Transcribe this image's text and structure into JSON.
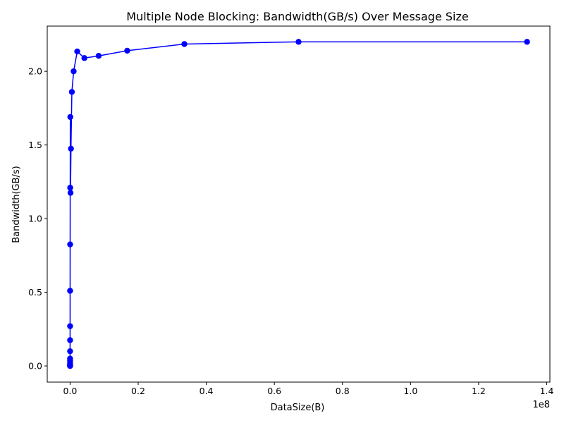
{
  "chart_data": {
    "type": "line",
    "title": "Multiple Node Blocking: Bandwidth(GB/s) Over Message Size",
    "xlabel": "DataSize(B)",
    "ylabel": "Bandwidth(GB/s)",
    "x_multiplier_label": "1e8",
    "xlim": [
      -6710886.4,
      140928614.4
    ],
    "ylim": [
      -0.1098,
      2.307
    ],
    "x_ticks": [
      {
        "value": 0,
        "label": "0.0"
      },
      {
        "value": 20000000,
        "label": "0.2"
      },
      {
        "value": 40000000,
        "label": "0.4"
      },
      {
        "value": 60000000,
        "label": "0.6"
      },
      {
        "value": 80000000,
        "label": "0.8"
      },
      {
        "value": 100000000,
        "label": "1.0"
      },
      {
        "value": 120000000,
        "label": "1.2"
      },
      {
        "value": 140000000,
        "label": "1.4"
      }
    ],
    "y_ticks": [
      {
        "value": 0.0,
        "label": "0.0"
      },
      {
        "value": 0.5,
        "label": "0.5"
      },
      {
        "value": 1.0,
        "label": "1.0"
      },
      {
        "value": 1.5,
        "label": "1.5"
      },
      {
        "value": 2.0,
        "label": "2.0"
      }
    ],
    "grid": false,
    "legend": "none",
    "color": "#0000ff",
    "series": [
      {
        "x": [
          1,
          2,
          4,
          8,
          16,
          32,
          64,
          128,
          256,
          512,
          1024,
          2048,
          4096,
          8192,
          16384,
          32768,
          65536,
          131072,
          262144,
          524288,
          1048576,
          2097152,
          4194304,
          8388608,
          16777216,
          33554432,
          67108864,
          134217728
        ],
        "y": [
          0.0001,
          0.0003,
          0.0006,
          0.0012,
          0.0025,
          0.005,
          0.01,
          0.02,
          0.035,
          0.05,
          0.1,
          0.175,
          0.27,
          0.51,
          0.825,
          1.21,
          1.69,
          1.175,
          1.475,
          1.86,
          2.0,
          2.135,
          2.09,
          2.105,
          2.14,
          2.185,
          2.2,
          2.2
        ]
      }
    ]
  }
}
